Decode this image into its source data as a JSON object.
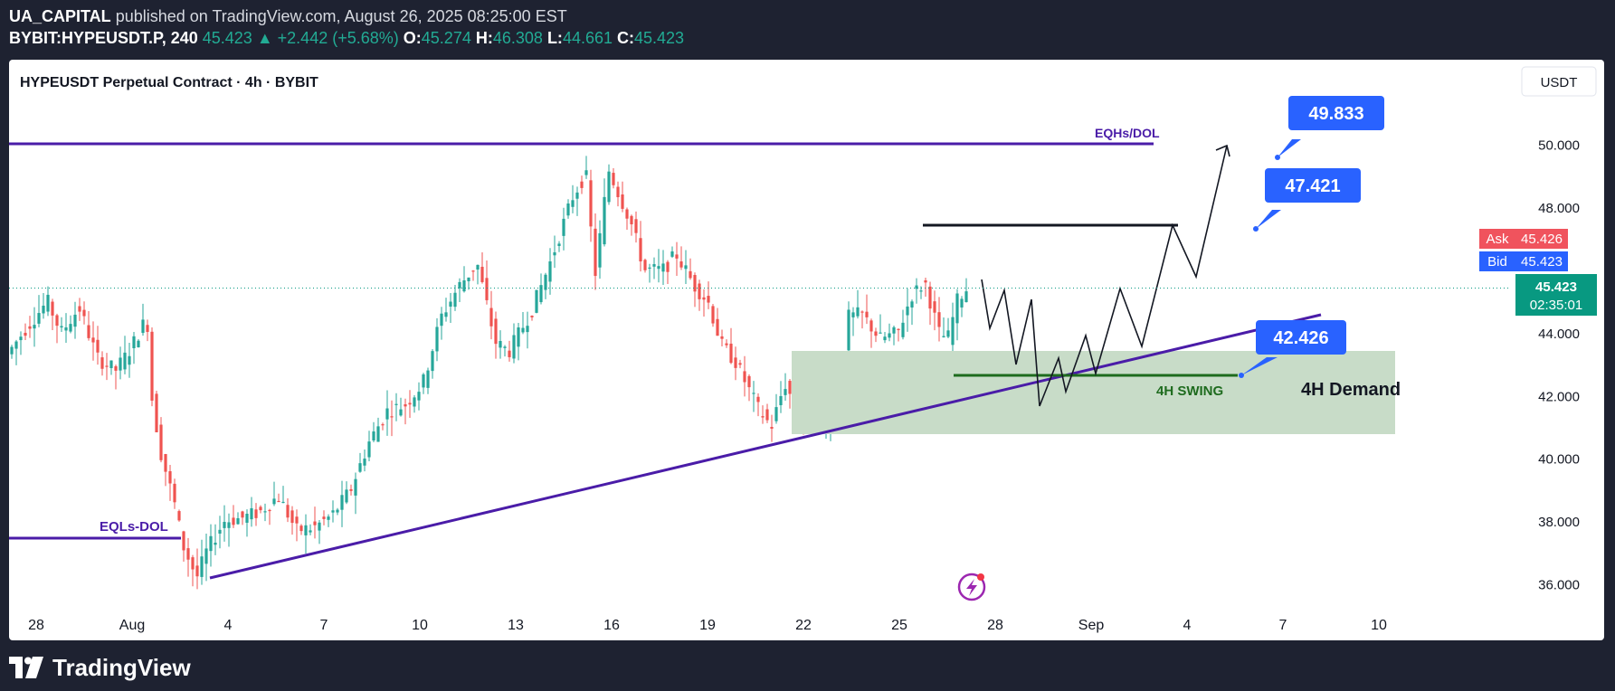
{
  "header": {
    "line1_author": "UA_CAPITAL",
    "line1_rest": "published on TradingView.com, August 26, 2025 08:25:00 EST",
    "symbol": "BYBIT:HYPEUSDT.P, 240",
    "last": "45.423",
    "change": "▲ +2.442 (+5.68%)",
    "o_label": "O:",
    "o_value": "45.274",
    "h_label": "H:",
    "h_value": "46.308",
    "l_label": "L:",
    "l_value": "44.661",
    "c_label": "C:",
    "c_value": "45.423"
  },
  "chart_title": "HYPEUSDT Perpetual Contract · 4h · BYBIT",
  "currency_button": "USDT",
  "footer": {
    "brand": "TradingView"
  },
  "colors": {
    "up": "#26a69a",
    "down": "#ef5350",
    "trend": "#4a1ca8",
    "demand": "#c8dcc8",
    "callout": "#2962ff",
    "ask": "#f0535d",
    "last": "#089981"
  },
  "chart_data": {
    "type": "candlestick",
    "title": "HYPEUSDT Perpetual Contract · 4h · BYBIT",
    "ylim": [
      34.2,
      52.7
    ],
    "y_ticks": [
      "50.000",
      "48.000",
      "44.000",
      "42.000",
      "40.000",
      "38.000",
      "36.000"
    ],
    "x_ticks": [
      "28",
      "Aug",
      "4",
      "7",
      "10",
      "13",
      "16",
      "19",
      "22",
      "25",
      "28",
      "Sep",
      "4",
      "7",
      "10"
    ],
    "price_line": 45.423,
    "ask_label": "Ask",
    "ask_value": "45.426",
    "bid_label": "Bid",
    "bid_value": "45.423",
    "last_price": "45.423",
    "countdown": "02:35:01",
    "eqh_label": "EQHs/DOL",
    "eqh_price": 49.9,
    "eql_label": "EQLs-DOL",
    "eql_price": 36.85,
    "swing_label": "4H SWING",
    "swing_price": 42.426,
    "demand_label": "4H Demand",
    "demand_zone": [
      40.5,
      43.2
    ],
    "callouts": [
      "49.833",
      "47.421",
      "42.426"
    ]
  }
}
